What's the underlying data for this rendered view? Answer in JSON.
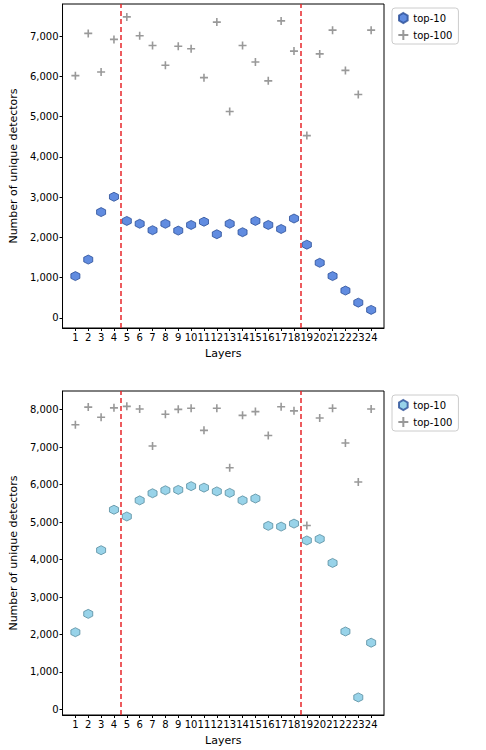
{
  "chart_data": [
    {
      "type": "scatter",
      "x_label": "Layers",
      "y_label": "Number of unique detectors",
      "x": [
        1,
        2,
        3,
        4,
        5,
        6,
        7,
        8,
        9,
        10,
        11,
        12,
        13,
        14,
        15,
        16,
        17,
        18,
        19,
        20,
        21,
        22,
        23,
        24
      ],
      "xlim": [
        0,
        25
      ],
      "xticks": [
        1,
        2,
        3,
        4,
        5,
        6,
        7,
        8,
        9,
        10,
        11,
        12,
        13,
        14,
        15,
        16,
        17,
        18,
        19,
        20,
        21,
        22,
        23,
        24
      ],
      "ylim": [
        -250,
        7800
      ],
      "yticks": [
        0,
        1000,
        2000,
        3000,
        4000,
        5000,
        6000,
        7000
      ],
      "vlines": [
        4.5,
        18.5
      ],
      "vline_color": "#e8262a",
      "grid": false,
      "legend": "upper right outside",
      "series": [
        {
          "name": "top-10",
          "color": "#3a6fd8",
          "marker": "hexagon",
          "values": [
            1040,
            1450,
            2630,
            3010,
            2410,
            2340,
            2180,
            2340,
            2170,
            2310,
            2390,
            2080,
            2340,
            2130,
            2410,
            2310,
            2210,
            2470,
            1820,
            1370,
            1040,
            680,
            380,
            200
          ]
        },
        {
          "name": "top-100",
          "color": "#808080",
          "marker": "plus",
          "values": [
            6020,
            7070,
            6110,
            6920,
            7480,
            7010,
            6770,
            6280,
            6750,
            6690,
            5970,
            7350,
            5130,
            6770,
            6360,
            5890,
            7380,
            6630,
            4530,
            6560,
            7150,
            6150,
            5550,
            7150
          ]
        }
      ]
    },
    {
      "type": "scatter",
      "x_label": "Layers",
      "y_label": "Number of unique detectors",
      "x": [
        1,
        2,
        3,
        4,
        5,
        6,
        7,
        8,
        9,
        10,
        11,
        12,
        13,
        14,
        15,
        16,
        17,
        18,
        19,
        20,
        21,
        22,
        23,
        24
      ],
      "xlim": [
        0,
        25
      ],
      "xticks": [
        1,
        2,
        3,
        4,
        5,
        6,
        7,
        8,
        9,
        10,
        11,
        12,
        13,
        14,
        15,
        16,
        17,
        18,
        19,
        20,
        21,
        22,
        23,
        24
      ],
      "ylim": [
        -150,
        8500
      ],
      "yticks": [
        0,
        1000,
        2000,
        3000,
        4000,
        5000,
        6000,
        7000,
        8000
      ],
      "vlines": [
        4.5,
        18.5
      ],
      "vline_color": "#e8262a",
      "grid": false,
      "legend": "upper right outside",
      "series": [
        {
          "name": "top-10",
          "color": "#7ec8e3",
          "marker": "hexagon",
          "values": [
            2060,
            2550,
            4250,
            5330,
            5150,
            5580,
            5770,
            5850,
            5860,
            5960,
            5920,
            5820,
            5780,
            5580,
            5630,
            4900,
            4880,
            4960,
            4510,
            4550,
            3910,
            2080,
            320,
            1780
          ]
        },
        {
          "name": "top-100",
          "color": "#808080",
          "marker": "plus",
          "values": [
            7600,
            8070,
            7800,
            8050,
            8090,
            8020,
            7030,
            7880,
            8010,
            8040,
            7450,
            8040,
            6450,
            7850,
            7950,
            7310,
            8080,
            7970,
            4910,
            7780,
            8040,
            7110,
            6070,
            8020
          ]
        }
      ]
    }
  ]
}
